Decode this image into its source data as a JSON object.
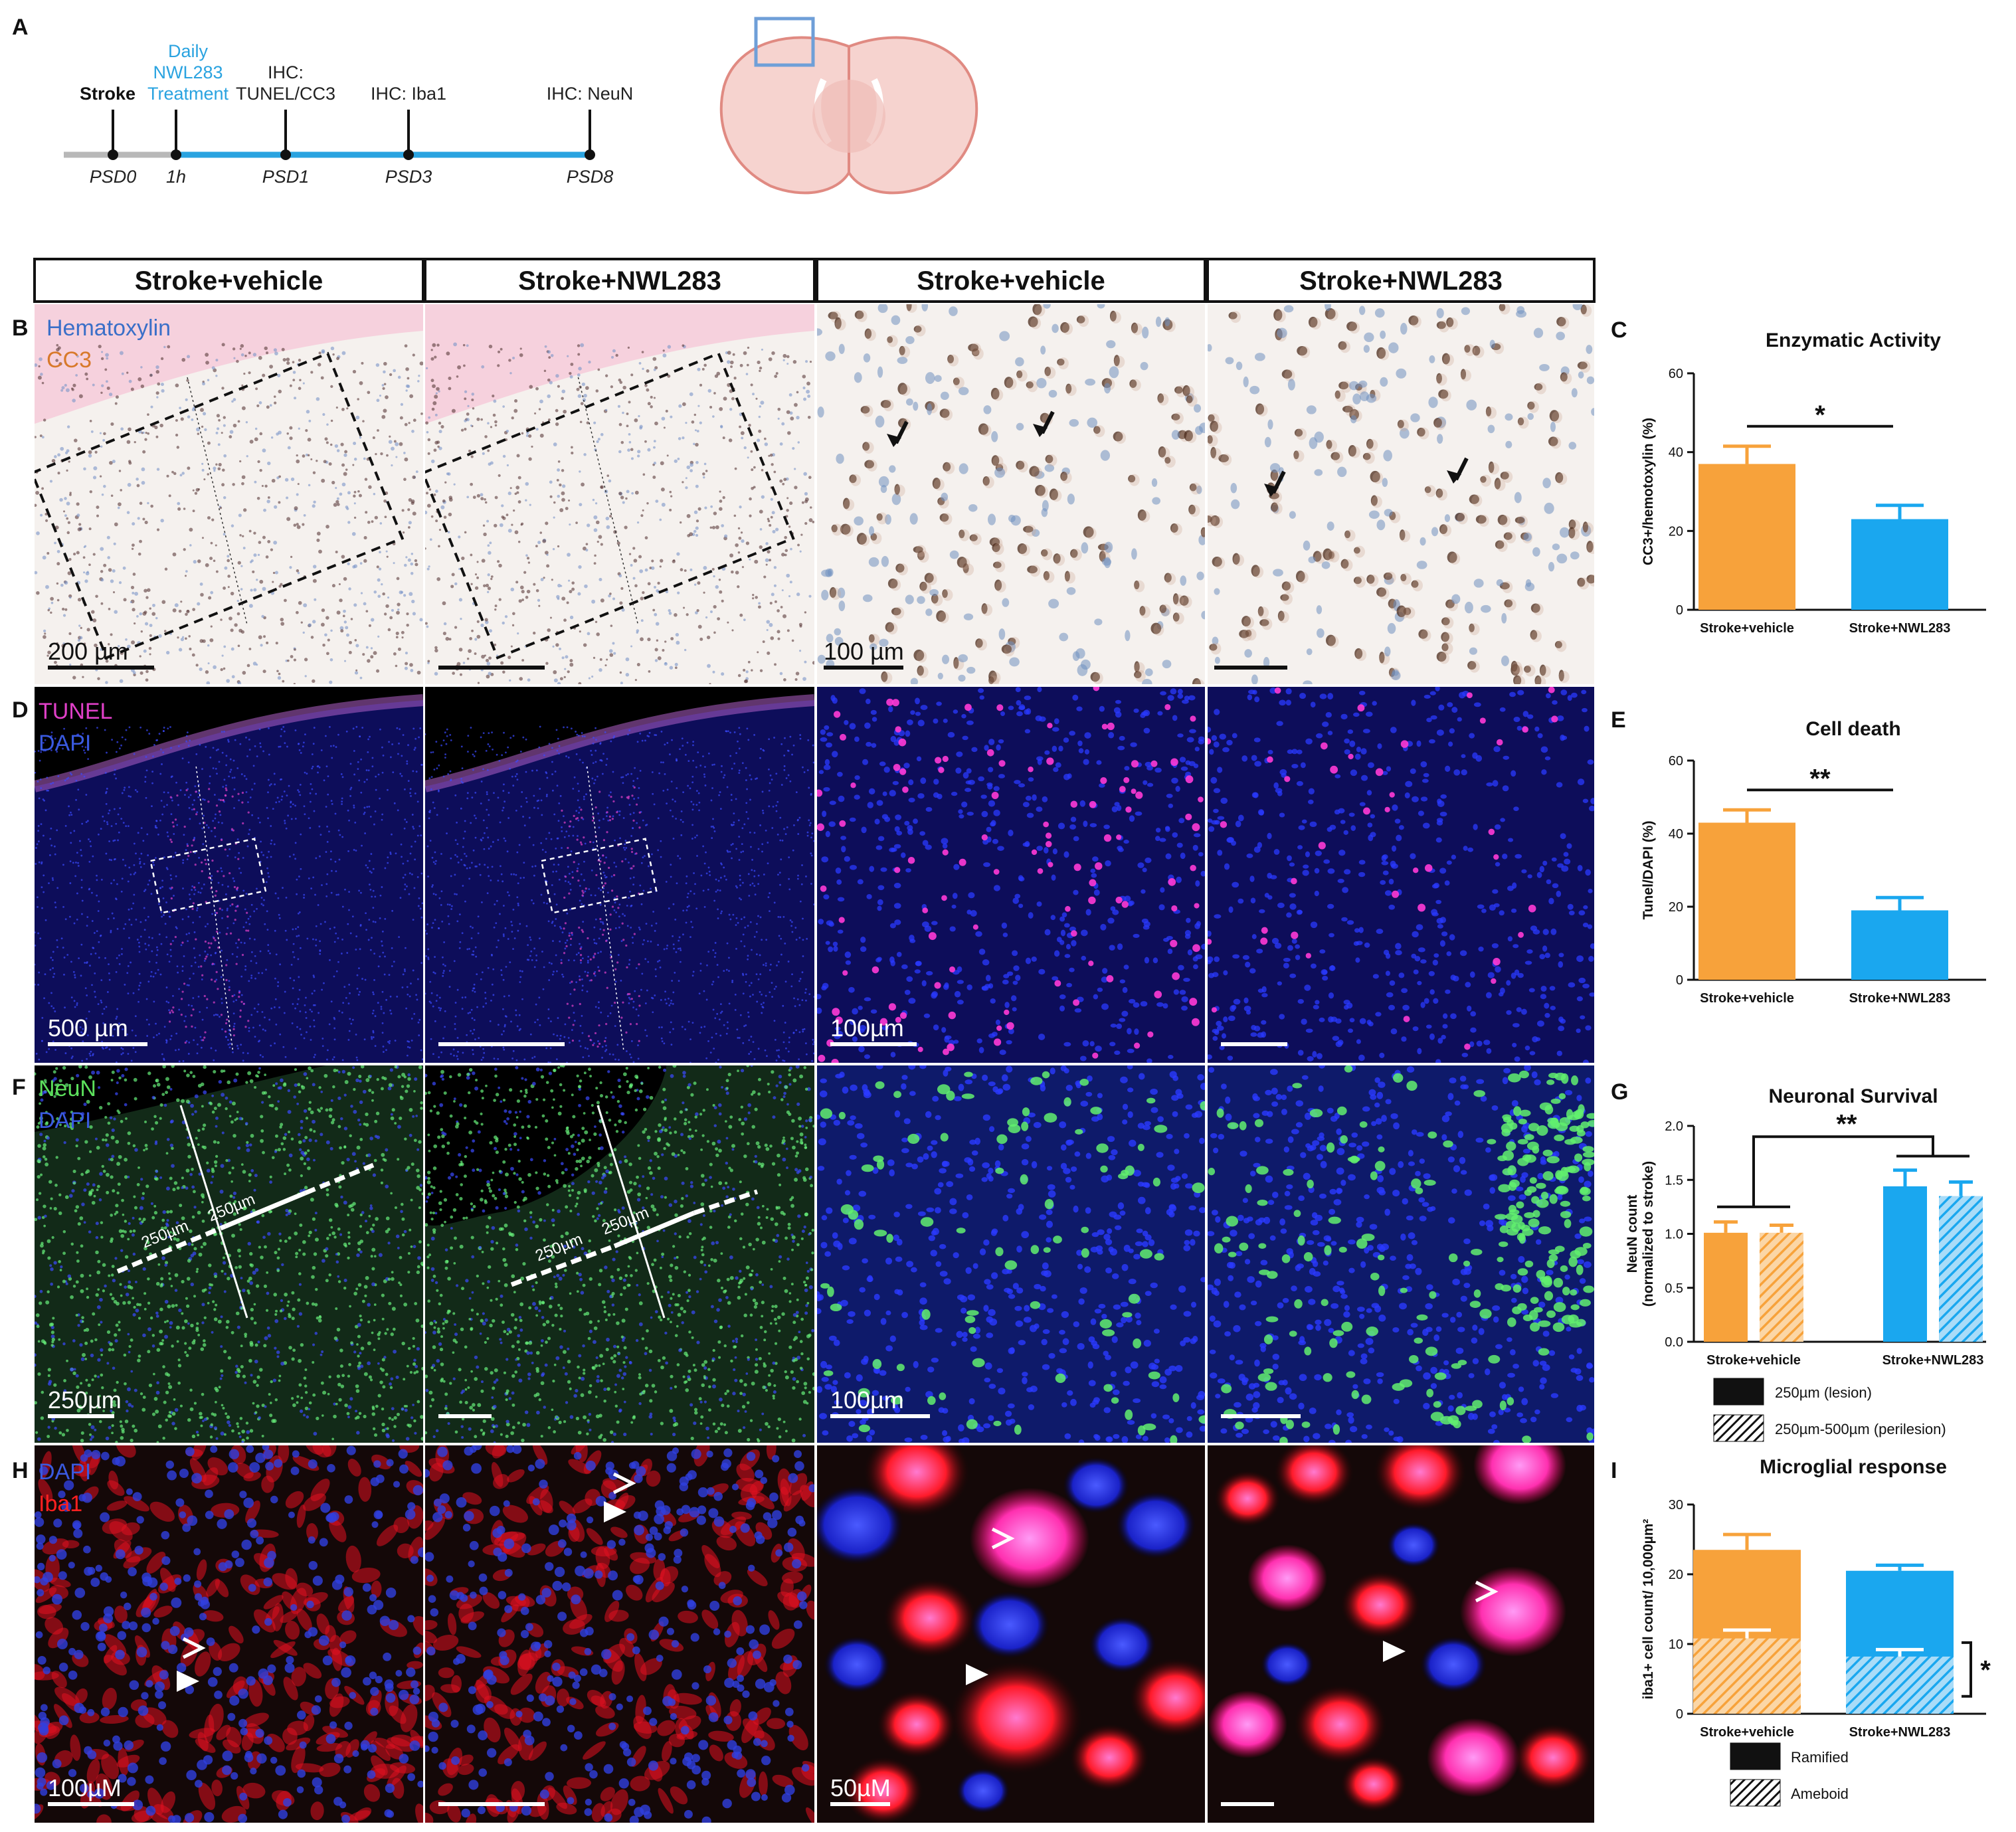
{
  "panel_letters": {
    "A": "A",
    "B": "B",
    "C": "C",
    "D": "D",
    "E": "E",
    "F": "F",
    "G": "G",
    "H": "H",
    "I": "I"
  },
  "timeline": {
    "events": [
      {
        "label": "Stroke",
        "time": "PSD0"
      },
      {
        "label": "Daily NWL283 Treatment",
        "lines": [
          "Daily",
          "NWL283",
          "Treatment"
        ],
        "time": "1h"
      },
      {
        "label": "IHC: TUNEL/CC3",
        "lines": [
          "IHC:",
          "TUNEL/CC3"
        ],
        "time": "PSD1"
      },
      {
        "label": "IHC: Iba1",
        "lines": [
          "IHC: Iba1"
        ],
        "time": "PSD3"
      },
      {
        "label": "IHC: NeuN",
        "lines": [
          "IHC: NeuN"
        ],
        "time": "PSD8"
      }
    ],
    "colors": {
      "pre": "#b8b8b8",
      "treatment": "#2aa3e0"
    }
  },
  "brain_icon": {
    "fill": "#f6d3cf",
    "stroke": "#e08a82",
    "roi": "#6f9fd8"
  },
  "column_headers": [
    "Stroke+vehicle",
    "Stroke+NWL283",
    "Stroke+vehicle",
    "Stroke+NWL283"
  ],
  "micrographs": {
    "B": {
      "stains": [
        {
          "name": "Hematoxylin",
          "color": "#3a6fc8"
        },
        {
          "name": "CC3",
          "color": "#d8792a"
        }
      ],
      "scale_labels": [
        "200 µm",
        "100 µm"
      ]
    },
    "D": {
      "stains": [
        {
          "name": "TUNEL",
          "color": "#e040c8"
        },
        {
          "name": "DAPI",
          "color": "#3a5ae0"
        }
      ],
      "scale_labels": [
        "500 µm",
        "100µm"
      ]
    },
    "F": {
      "stains": [
        {
          "name": "NeuN",
          "color": "#5ce05c"
        },
        {
          "name": "DAPI",
          "color": "#3a5ae0"
        }
      ],
      "scale_labels": [
        "250µm",
        "100µm"
      ],
      "distance_labels": [
        "250µm",
        "250µm"
      ]
    },
    "H": {
      "stains": [
        {
          "name": "DAPI",
          "color": "#3a5ae0"
        },
        {
          "name": "Iba1",
          "color": "#ff2020"
        }
      ],
      "scale_labels": [
        "100µM",
        "50µM"
      ]
    }
  },
  "chart_data": [
    {
      "id": "C",
      "type": "bar",
      "title": "Enzymatic Activity",
      "ylabel": "CC3+/hemotoxylin (%)",
      "ylim": [
        0,
        60
      ],
      "yticks": [
        0,
        20,
        40,
        60
      ],
      "categories": [
        "Stroke+vehicle",
        "Stroke+NWL283"
      ],
      "values": [
        37,
        23
      ],
      "errors": [
        4.5,
        3.5
      ],
      "colors": [
        "#f7a23b",
        "#1aa7ef"
      ],
      "significance": "*"
    },
    {
      "id": "E",
      "type": "bar",
      "title": "Cell death",
      "ylabel": "Tunel/DAPI (%)",
      "ylim": [
        0,
        60
      ],
      "yticks": [
        0,
        20,
        40,
        60
      ],
      "categories": [
        "Stroke+vehicle",
        "Stroke+NWL283"
      ],
      "values": [
        43,
        19
      ],
      "errors": [
        3.5,
        3.5
      ],
      "colors": [
        "#f7a23b",
        "#1aa7ef"
      ],
      "significance": "**"
    },
    {
      "id": "G",
      "type": "bar",
      "title": "Neuronal Survival",
      "ylabel_lines": [
        "NeuN count",
        "(normalized to stroke)"
      ],
      "ylim": [
        0,
        2.0
      ],
      "yticks": [
        "0.0",
        "0.5",
        "1.0",
        "1.5",
        "2.0"
      ],
      "categories": [
        "Stroke+vehicle",
        "Stroke+NWL283"
      ],
      "series": [
        {
          "name": "250µm (lesion)",
          "values": [
            1.01,
            1.44
          ],
          "errors": [
            0.1,
            0.15
          ],
          "pattern": "solid"
        },
        {
          "name": "250µm-500µm (perilesion)",
          "values": [
            1.01,
            1.35
          ],
          "errors": [
            0.07,
            0.13
          ],
          "pattern": "hatched"
        }
      ],
      "colors": [
        "#f7a23b",
        "#1aa7ef"
      ],
      "significance": "**",
      "legend": [
        "250µm (lesion)",
        "250µm-500µm (perilesion)"
      ]
    },
    {
      "id": "I",
      "type": "bar",
      "title": "Microglial response",
      "ylabel": "iba1+ cell count/ 10,000µm²",
      "ylim": [
        0,
        30
      ],
      "yticks": [
        0,
        10,
        20,
        30
      ],
      "categories": [
        "Stroke+vehicle",
        "Stroke+NWL283"
      ],
      "stacked": true,
      "series": [
        {
          "name": "Ramified",
          "values": [
            23.5,
            20.5
          ],
          "errors": [
            2.2,
            0.8
          ]
        },
        {
          "name": "Ameboid",
          "values": [
            10.8,
            8.2
          ],
          "errors": [
            1.2,
            1.0
          ]
        }
      ],
      "colors": [
        "#f7a23b",
        "#1aa7ef"
      ],
      "significance": "*",
      "legend": [
        "Ramified",
        "Ameboid"
      ]
    }
  ]
}
